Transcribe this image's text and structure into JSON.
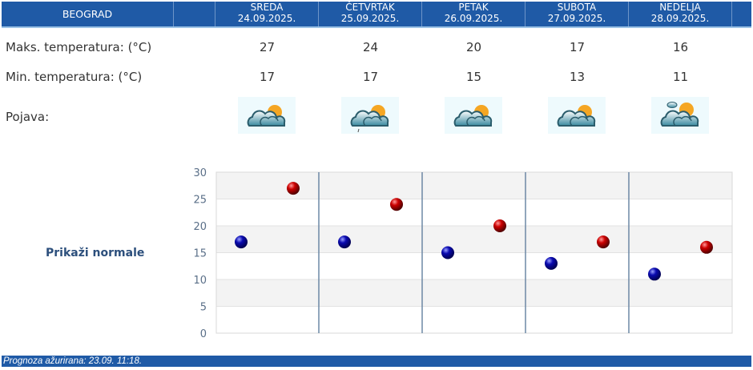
{
  "header": {
    "city": "BEOGRAD",
    "days": [
      {
        "name": "SREDA",
        "date": "24.09.2025."
      },
      {
        "name": "ČETVRTAK",
        "date": "25.09.2025."
      },
      {
        "name": "PETAK",
        "date": "26.09.2025."
      },
      {
        "name": "SUBOTA",
        "date": "27.09.2025."
      },
      {
        "name": "NEDELJA",
        "date": "28.09.2025."
      }
    ]
  },
  "rows": {
    "max_label": "Maks. temperatura: (°C)",
    "min_label": "Min. temperatura: (°C)",
    "phenomenon_label": "Pojava:",
    "max": [
      "27",
      "24",
      "20",
      "17",
      "16"
    ],
    "min": [
      "17",
      "17",
      "15",
      "13",
      "11"
    ],
    "icons": [
      "partly-cloudy-icon",
      "partly-cloudy-light-rain-icon",
      "partly-cloudy-icon",
      "partly-cloudy-icon",
      "mostly-sunny-clouds-icon"
    ]
  },
  "normals_link": "Prikaži normale",
  "footer": "Prognoza ažurirana:  23.09. 11:18.",
  "chart_data": {
    "type": "scatter",
    "ylim": [
      0,
      30
    ],
    "yticks": [
      "0",
      "5",
      "10",
      "15",
      "20",
      "25",
      "30"
    ],
    "categories": [
      "24.09.2025.",
      "25.09.2025.",
      "26.09.2025.",
      "27.09.2025.",
      "28.09.2025."
    ],
    "series": [
      {
        "values": [
          17,
          17,
          15,
          13,
          11
        ],
        "color": "#0a0ab0"
      },
      {
        "values": [
          27,
          24,
          20,
          17,
          16
        ],
        "color": "#cc0000"
      }
    ],
    "grid": true
  },
  "colors": {
    "header": "#1f5aa6",
    "min": "#0a0ab0",
    "max": "#cc0000"
  }
}
